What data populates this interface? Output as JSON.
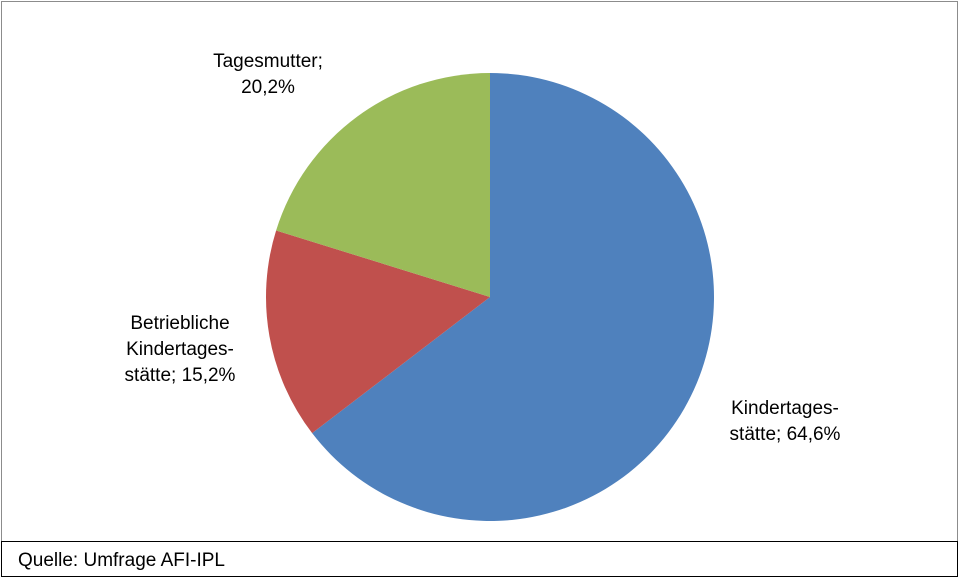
{
  "chart_data": {
    "type": "pie",
    "values": [
      64.6,
      15.2,
      20.2
    ],
    "value_labels": [
      "Kindertages-\nstätte; 64,6%",
      "Betriebliche\nKindertages-\nstätte; 15,2%",
      "Tagesmutter;\n20,2%"
    ],
    "colors": [
      "#4f81bd",
      "#c0504d",
      "#9bbb59"
    ],
    "source": "Quelle: Umfrage AFI-IPL"
  }
}
